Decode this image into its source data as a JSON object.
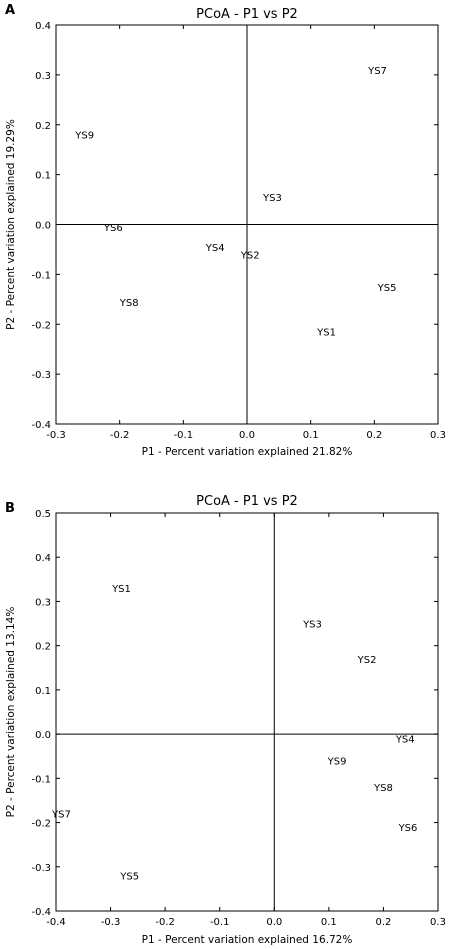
{
  "chart_data": [
    {
      "type": "scatter",
      "panel_label": "A",
      "title": "PCoA - P1 vs P2",
      "xlabel": "P1 - Percent variation explained 21.82%",
      "ylabel": "P2 - Percent variation explained 19.29%",
      "xlim": [
        -0.3,
        0.3
      ],
      "ylim": [
        -0.4,
        0.4
      ],
      "xticks": [
        -0.3,
        -0.2,
        -0.1,
        0.0,
        0.1,
        0.2,
        0.3
      ],
      "yticks": [
        -0.4,
        -0.3,
        -0.2,
        -0.1,
        0.0,
        0.1,
        0.2,
        0.3,
        0.4
      ],
      "xtick_labels": [
        "-0.3",
        "-0.2",
        "-0.1",
        "0.0",
        "0.1",
        "0.2",
        "0.3"
      ],
      "ytick_labels": [
        "-0.4",
        "-0.3",
        "-0.2",
        "-0.1",
        "0.0",
        "0.1",
        "0.2",
        "0.3",
        "0.4"
      ],
      "grid": false,
      "points": [
        {
          "label": "YS7",
          "x": 0.205,
          "y": 0.31
        },
        {
          "label": "YS9",
          "x": -0.255,
          "y": 0.18
        },
        {
          "label": "YS3",
          "x": 0.04,
          "y": 0.055
        },
        {
          "label": "YS6",
          "x": -0.21,
          "y": -0.005
        },
        {
          "label": "YS4",
          "x": -0.05,
          "y": -0.045
        },
        {
          "label": "YS2",
          "x": 0.005,
          "y": -0.06
        },
        {
          "label": "YS5",
          "x": 0.22,
          "y": -0.125
        },
        {
          "label": "YS8",
          "x": -0.185,
          "y": -0.155
        },
        {
          "label": "YS1",
          "x": 0.125,
          "y": -0.215
        }
      ]
    },
    {
      "type": "scatter",
      "panel_label": "B",
      "title": "PCoA - P1 vs P2",
      "xlabel": "P1 - Percent variation explained 16.72%",
      "ylabel": "P2 - Percent variation explained 13.14%",
      "xlim": [
        -0.4,
        0.3
      ],
      "ylim": [
        -0.4,
        0.5
      ],
      "xticks": [
        -0.4,
        -0.3,
        -0.2,
        -0.1,
        0.0,
        0.1,
        0.2,
        0.3
      ],
      "yticks": [
        -0.4,
        -0.3,
        -0.2,
        -0.1,
        0.0,
        0.1,
        0.2,
        0.3,
        0.4,
        0.5
      ],
      "xtick_labels": [
        "-0.4",
        "-0.3",
        "-0.2",
        "-0.1",
        "0.0",
        "0.1",
        "0.2",
        "0.3"
      ],
      "ytick_labels": [
        "-0.4",
        "-0.3",
        "-0.2",
        "-0.1",
        "0.0",
        "0.1",
        "0.2",
        "0.3",
        "0.4",
        "0.5"
      ],
      "grid": false,
      "points": [
        {
          "label": "YS1",
          "x": -0.28,
          "y": 0.33
        },
        {
          "label": "YS3",
          "x": 0.07,
          "y": 0.25
        },
        {
          "label": "YS2",
          "x": 0.17,
          "y": 0.17
        },
        {
          "label": "YS4",
          "x": 0.24,
          "y": -0.01
        },
        {
          "label": "YS9",
          "x": 0.115,
          "y": -0.06
        },
        {
          "label": "YS8",
          "x": 0.2,
          "y": -0.12
        },
        {
          "label": "YS6",
          "x": 0.245,
          "y": -0.21
        },
        {
          "label": "YS7",
          "x": -0.39,
          "y": -0.18
        },
        {
          "label": "YS5",
          "x": -0.265,
          "y": -0.32
        }
      ]
    }
  ]
}
